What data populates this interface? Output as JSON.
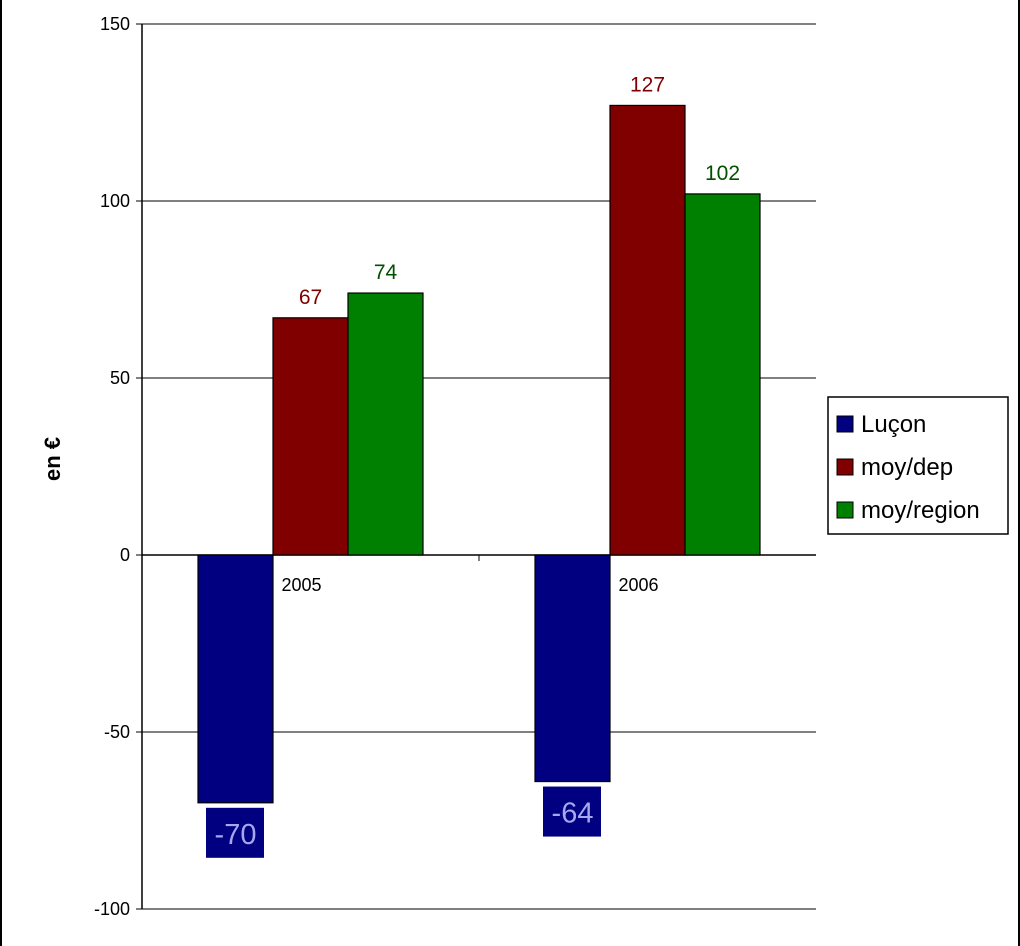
{
  "chart_data": {
    "type": "bar",
    "categories": [
      "2005",
      "2006"
    ],
    "series": [
      {
        "name": "Luçon",
        "values": [
          -70,
          -64
        ],
        "color": "#000080",
        "label_color": "#a7a7f0",
        "label_bg": "#000080"
      },
      {
        "name": "moy/dep",
        "values": [
          67,
          127
        ],
        "color": "#800000",
        "label_color": "#800000"
      },
      {
        "name": "moy/region",
        "values": [
          74,
          102
        ],
        "color": "#008000",
        "label_color": "#005000"
      }
    ],
    "ylabel": "en €",
    "ylim": [
      -100,
      150
    ],
    "yticks": [
      "150",
      "100",
      "50",
      "0",
      "-50",
      "-100"
    ],
    "ytick_values": [
      150,
      100,
      50,
      0,
      -50,
      -100
    ],
    "grid": true,
    "legend_position": "right"
  }
}
